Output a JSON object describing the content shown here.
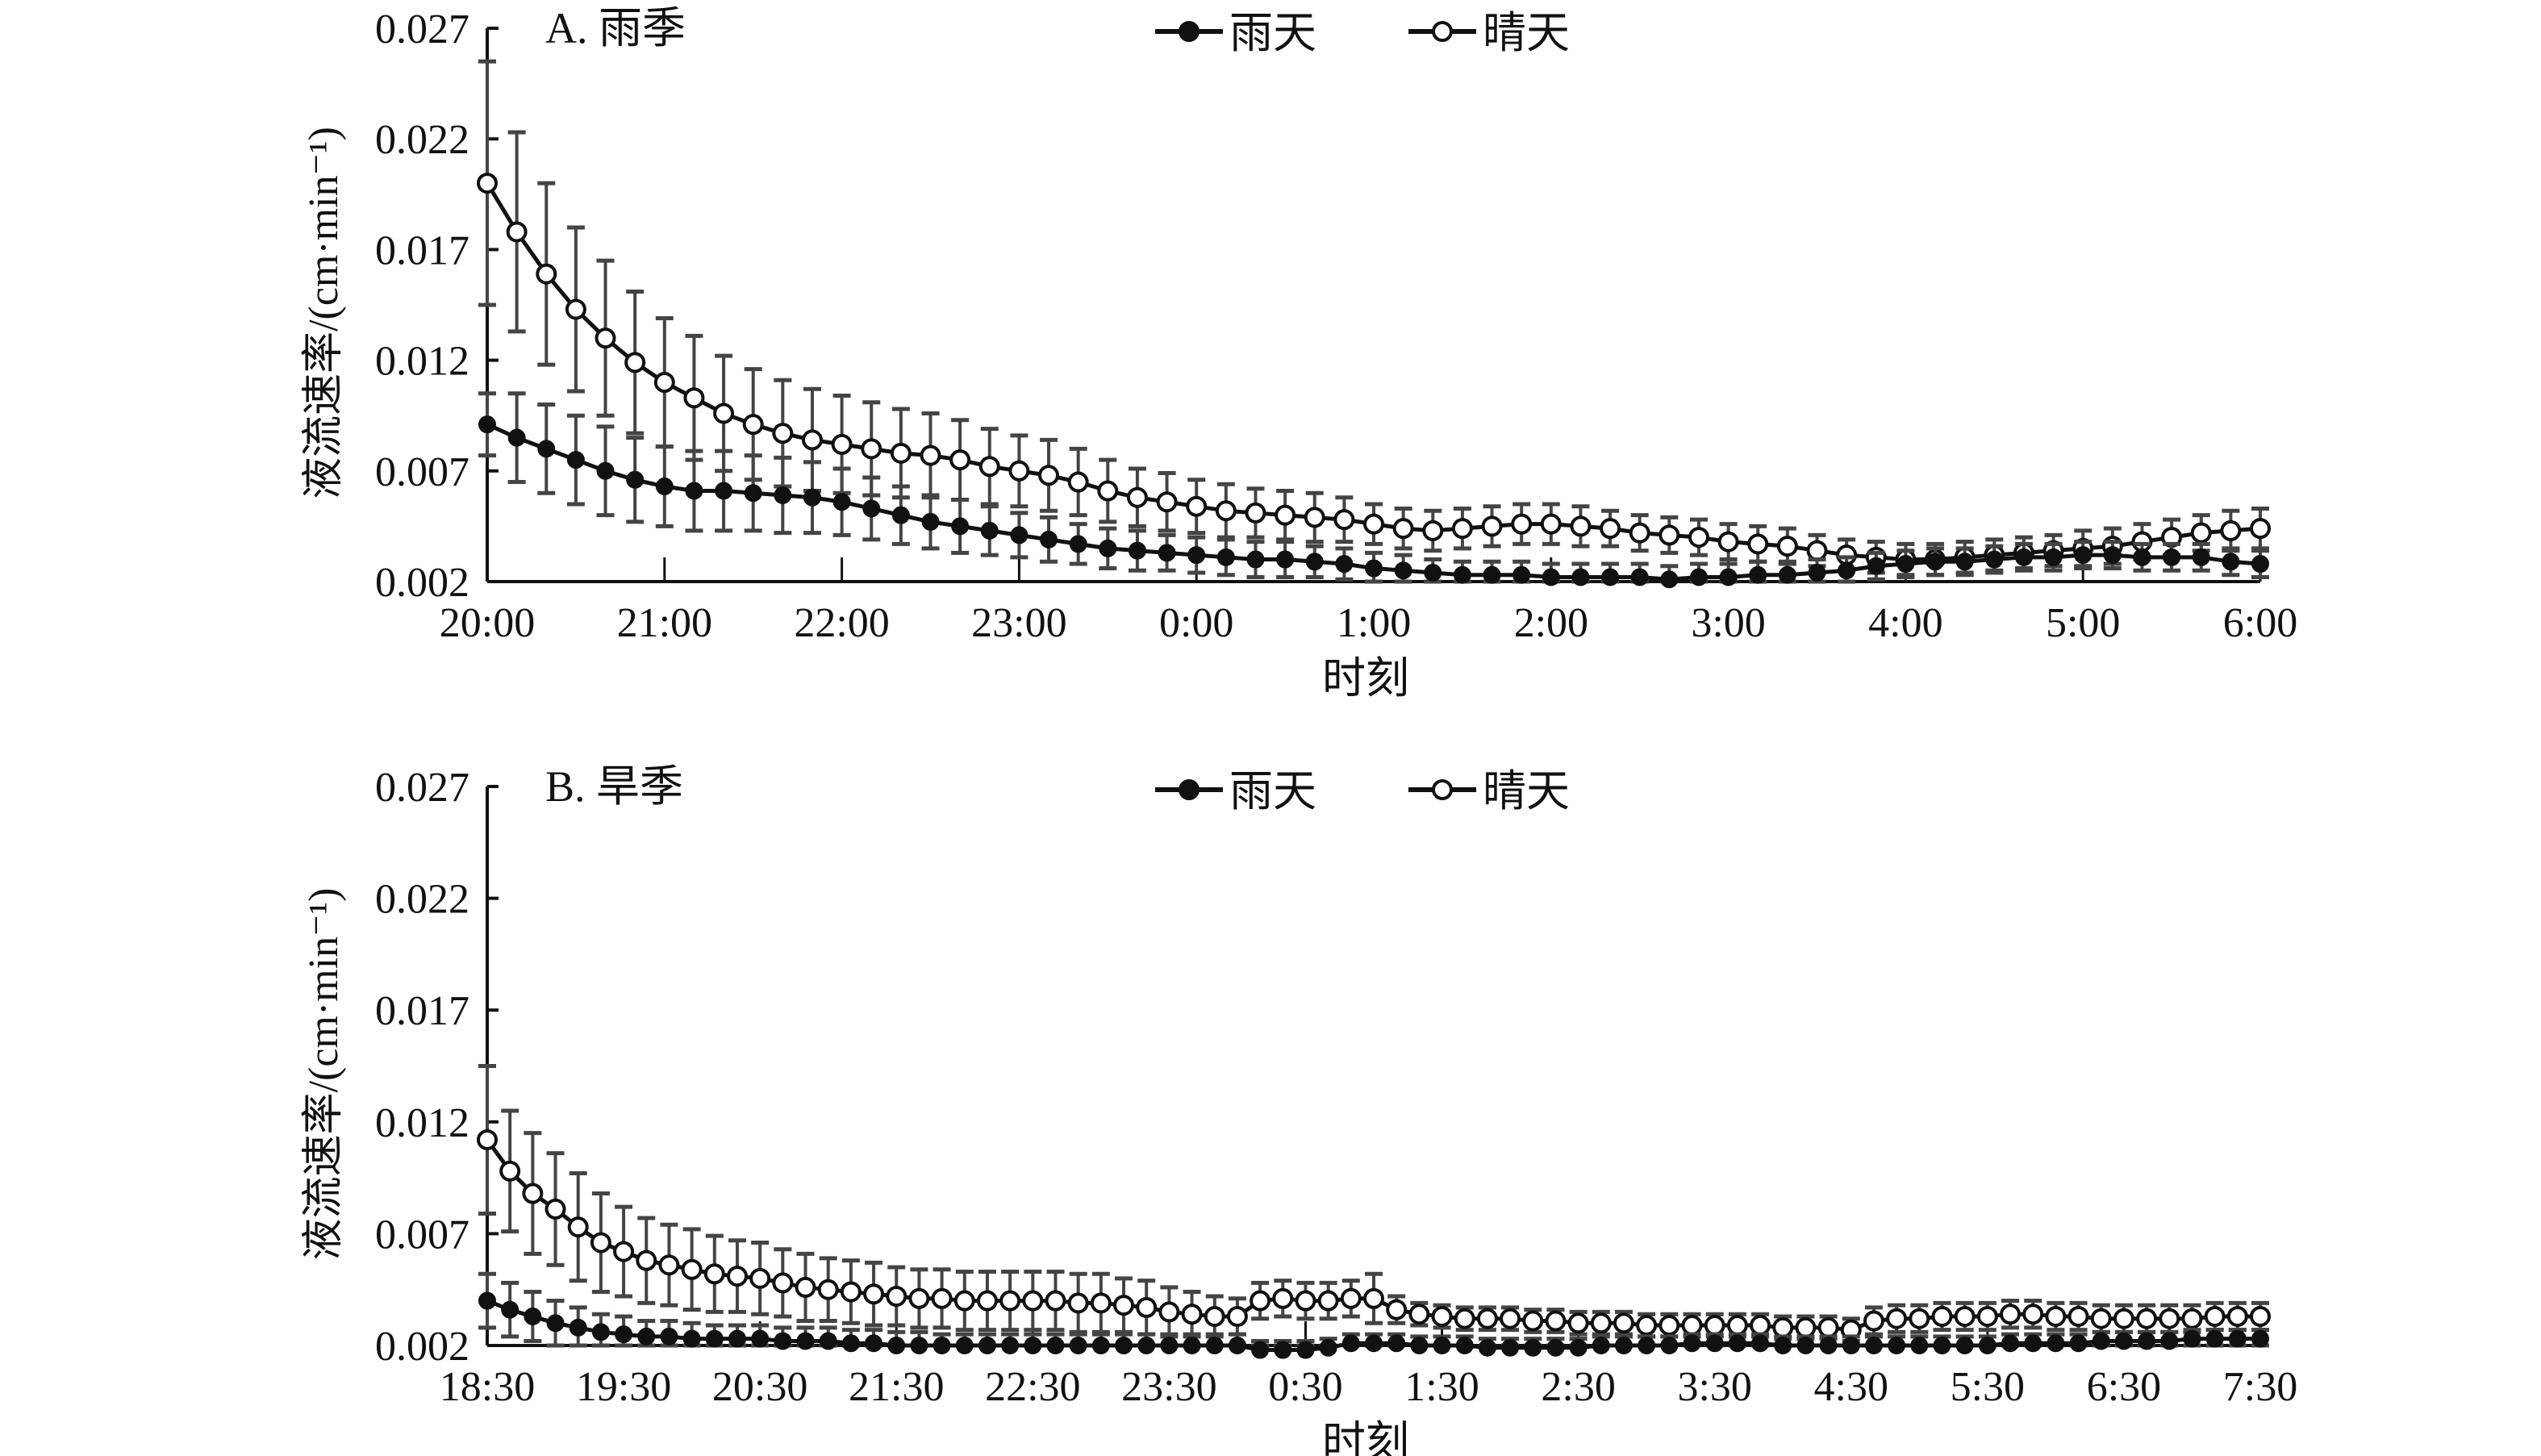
{
  "chart_data": [
    {
      "type": "line",
      "title": "A. 雨季",
      "xlabel": "时刻",
      "ylabel": "液流速率/(cm·min⁻¹)",
      "ylim": [
        0.002,
        0.027
      ],
      "yticks": [
        "0.027",
        "0.022",
        "0.017",
        "0.012",
        "0.007",
        "0.002"
      ],
      "xtick_labels": [
        "20:00",
        "21:00",
        "22:00",
        "23:00",
        "0:00",
        "1:00",
        "2:00",
        "3:00",
        "4:00",
        "5:00",
        "6:00"
      ],
      "x_start": "20:00",
      "x_end": "6:00",
      "interval_minutes": 10,
      "legend_position": "top-center",
      "error_bars": true,
      "series": [
        {
          "name": "雨天",
          "marker": "filled-circle",
          "values": [
            0.0091,
            0.0085,
            0.008,
            0.0075,
            0.007,
            0.0066,
            0.0063,
            0.0061,
            0.0061,
            0.006,
            0.0059,
            0.0058,
            0.0056,
            0.0053,
            0.005,
            0.0047,
            0.0045,
            0.0043,
            0.0041,
            0.0039,
            0.0037,
            0.0035,
            0.0034,
            0.0033,
            0.0032,
            0.0031,
            0.003,
            0.003,
            0.0029,
            0.0028,
            0.0026,
            0.0025,
            0.0024,
            0.0023,
            0.0023,
            0.0023,
            0.0022,
            0.0022,
            0.0022,
            0.0022,
            0.0021,
            0.0022,
            0.0022,
            0.0023,
            0.0023,
            0.0024,
            0.0025,
            0.0027,
            0.0028,
            0.0029,
            0.0029,
            0.003,
            0.0031,
            0.0031,
            0.0032,
            0.0032,
            0.0031,
            0.0031,
            0.0031,
            0.0029,
            0.0028
          ],
          "errors": [
            0.0014,
            0.002,
            0.002,
            0.002,
            0.002,
            0.0019,
            0.0018,
            0.0018,
            0.0018,
            0.0017,
            0.0017,
            0.0016,
            0.0015,
            0.0014,
            0.0013,
            0.0012,
            0.0012,
            0.0011,
            0.001,
            0.001,
            0.0009,
            0.0009,
            0.0009,
            0.0008,
            0.0008,
            0.0008,
            0.0008,
            0.0008,
            0.0007,
            0.0007,
            0.0007,
            0.0007,
            0.0006,
            0.0006,
            0.0006,
            0.0006,
            0.0006,
            0.0006,
            0.0006,
            0.0006,
            0.0006,
            0.0006,
            0.0006,
            0.0006,
            0.0006,
            0.0006,
            0.0006,
            0.0006,
            0.0006,
            0.0006,
            0.0006,
            0.0006,
            0.0006,
            0.0006,
            0.0006,
            0.0006,
            0.0006,
            0.0006,
            0.0006,
            0.0006,
            0.0006
          ]
        },
        {
          "name": "晴天",
          "marker": "open-circle",
          "values": [
            0.02,
            0.0178,
            0.0159,
            0.0143,
            0.013,
            0.0119,
            0.011,
            0.0103,
            0.0096,
            0.0091,
            0.0087,
            0.0084,
            0.0082,
            0.008,
            0.0078,
            0.0077,
            0.0075,
            0.0072,
            0.007,
            0.0068,
            0.0065,
            0.0061,
            0.0058,
            0.0056,
            0.0054,
            0.0052,
            0.0051,
            0.005,
            0.0049,
            0.0048,
            0.0046,
            0.0044,
            0.0043,
            0.0044,
            0.0045,
            0.0046,
            0.0046,
            0.0045,
            0.0044,
            0.0042,
            0.0041,
            0.004,
            0.0038,
            0.0037,
            0.0036,
            0.0034,
            0.0032,
            0.0031,
            0.003,
            0.003,
            0.0031,
            0.0032,
            0.0033,
            0.0034,
            0.0035,
            0.0036,
            0.0038,
            0.004,
            0.0042,
            0.0043,
            0.0044
          ],
          "errors": [
            0.0055,
            0.0045,
            0.0041,
            0.0037,
            0.0035,
            0.0032,
            0.0029,
            0.0028,
            0.0026,
            0.0025,
            0.0024,
            0.0023,
            0.0022,
            0.0021,
            0.002,
            0.0019,
            0.0018,
            0.0017,
            0.0016,
            0.0016,
            0.0015,
            0.0014,
            0.0013,
            0.0013,
            0.0012,
            0.0012,
            0.0011,
            0.0011,
            0.0011,
            0.001,
            0.0009,
            0.0009,
            0.0009,
            0.0009,
            0.0009,
            0.0009,
            0.0009,
            0.0009,
            0.0008,
            0.0008,
            0.0008,
            0.0008,
            0.0008,
            0.0008,
            0.0008,
            0.0007,
            0.0007,
            0.0007,
            0.0007,
            0.0007,
            0.0007,
            0.0007,
            0.0007,
            0.0007,
            0.0008,
            0.0008,
            0.0008,
            0.0008,
            0.0008,
            0.0009,
            0.0009
          ]
        }
      ]
    },
    {
      "type": "line",
      "title": "B. 旱季",
      "xlabel": "时刻",
      "ylabel": "液流速率/(cm·min⁻¹)",
      "ylim": [
        0.002,
        0.027
      ],
      "yticks": [
        "0.027",
        "0.022",
        "0.017",
        "0.012",
        "0.007",
        "0.002"
      ],
      "xtick_labels": [
        "18:30",
        "19:30",
        "20:30",
        "21:30",
        "22:30",
        "23:30",
        "0:30",
        "1:30",
        "2:30",
        "3:30",
        "4:30",
        "5:30",
        "6:30",
        "7:30"
      ],
      "x_start": "18:30",
      "x_end": "7:30",
      "interval_minutes": 10,
      "legend_position": "top-center",
      "error_bars": true,
      "series": [
        {
          "name": "雨天",
          "marker": "filled-circle",
          "values": [
            0.004,
            0.0036,
            0.0033,
            0.003,
            0.0028,
            0.0026,
            0.0025,
            0.0024,
            0.0024,
            0.0023,
            0.0023,
            0.0023,
            0.0023,
            0.0022,
            0.0022,
            0.0022,
            0.0021,
            0.0021,
            0.002,
            0.002,
            0.002,
            0.002,
            0.002,
            0.002,
            0.002,
            0.002,
            0.002,
            0.002,
            0.002,
            0.002,
            0.002,
            0.002,
            0.002,
            0.002,
            0.0018,
            0.0018,
            0.0018,
            0.0019,
            0.0021,
            0.0021,
            0.0021,
            0.002,
            0.002,
            0.002,
            0.0019,
            0.0019,
            0.0019,
            0.0019,
            0.0019,
            0.002,
            0.002,
            0.002,
            0.002,
            0.0021,
            0.0021,
            0.0021,
            0.0021,
            0.002,
            0.002,
            0.002,
            0.002,
            0.002,
            0.002,
            0.002,
            0.002,
            0.002,
            0.002,
            0.0021,
            0.0021,
            0.0021,
            0.0021,
            0.0022,
            0.0022,
            0.0022,
            0.0022,
            0.0023,
            0.0023,
            0.0023,
            0.0023
          ],
          "errors": [
            0.0012,
            0.0012,
            0.0011,
            0.001,
            0.0009,
            0.0008,
            0.0008,
            0.0007,
            0.0007,
            0.0007,
            0.0006,
            0.0006,
            0.0006,
            0.0006,
            0.0006,
            0.0006,
            0.0006,
            0.0006,
            0.0006,
            0.0006,
            0.0005,
            0.0005,
            0.0005,
            0.0005,
            0.0005,
            0.0005,
            0.0005,
            0.0005,
            0.0005,
            0.0005,
            0.0005,
            0.0005,
            0.0005,
            0.0005,
            0.0004,
            0.0004,
            0.0004,
            0.0004,
            0.0004,
            0.0004,
            0.0004,
            0.0004,
            0.0004,
            0.0004,
            0.0004,
            0.0004,
            0.0004,
            0.0004,
            0.0004,
            0.0004,
            0.0004,
            0.0004,
            0.0004,
            0.0004,
            0.0004,
            0.0004,
            0.0004,
            0.0004,
            0.0004,
            0.0004,
            0.0004,
            0.0004,
            0.0004,
            0.0004,
            0.0004,
            0.0004,
            0.0004,
            0.0004,
            0.0004,
            0.0004,
            0.0004,
            0.0004,
            0.0004,
            0.0004,
            0.0004,
            0.0004,
            0.0004,
            0.0004,
            0.0004
          ]
        },
        {
          "name": "晴天",
          "marker": "open-circle",
          "values": [
            0.0112,
            0.0098,
            0.0088,
            0.0081,
            0.0073,
            0.0066,
            0.0062,
            0.0058,
            0.0056,
            0.0054,
            0.0052,
            0.0051,
            0.005,
            0.0048,
            0.0046,
            0.0045,
            0.0044,
            0.0043,
            0.0042,
            0.0041,
            0.0041,
            0.004,
            0.004,
            0.004,
            0.004,
            0.004,
            0.0039,
            0.0039,
            0.0038,
            0.0037,
            0.0035,
            0.0034,
            0.0033,
            0.0033,
            0.004,
            0.0041,
            0.004,
            0.004,
            0.0041,
            0.0041,
            0.0036,
            0.0034,
            0.0033,
            0.0032,
            0.0032,
            0.0032,
            0.0031,
            0.0031,
            0.003,
            0.003,
            0.003,
            0.0029,
            0.0029,
            0.0029,
            0.0029,
            0.0029,
            0.0029,
            0.0028,
            0.0028,
            0.0028,
            0.0027,
            0.0031,
            0.0032,
            0.0032,
            0.0033,
            0.0033,
            0.0033,
            0.0034,
            0.0034,
            0.0033,
            0.0033,
            0.0032,
            0.0032,
            0.0032,
            0.0032,
            0.0032,
            0.0033,
            0.0033,
            0.0033
          ],
          "errors": [
            0.0033,
            0.0027,
            0.0027,
            0.0025,
            0.0024,
            0.0022,
            0.002,
            0.0019,
            0.0018,
            0.0018,
            0.0017,
            0.0016,
            0.0016,
            0.0015,
            0.0015,
            0.0014,
            0.0014,
            0.0014,
            0.0013,
            0.0013,
            0.0013,
            0.0013,
            0.0013,
            0.0013,
            0.0013,
            0.0013,
            0.0013,
            0.0013,
            0.0012,
            0.0012,
            0.0011,
            0.001,
            0.0009,
            0.0008,
            0.0008,
            0.0008,
            0.0008,
            0.0008,
            0.0008,
            0.0011,
            0.0006,
            0.0005,
            0.0005,
            0.0005,
            0.0005,
            0.0005,
            0.0005,
            0.0005,
            0.0005,
            0.0005,
            0.0005,
            0.0005,
            0.0005,
            0.0005,
            0.0005,
            0.0005,
            0.0005,
            0.0005,
            0.0005,
            0.0005,
            0.0005,
            0.0006,
            0.0006,
            0.0006,
            0.0006,
            0.0006,
            0.0006,
            0.0006,
            0.0006,
            0.0006,
            0.0006,
            0.0006,
            0.0006,
            0.0006,
            0.0006,
            0.0006,
            0.0006,
            0.0006,
            0.0006
          ]
        }
      ]
    }
  ]
}
